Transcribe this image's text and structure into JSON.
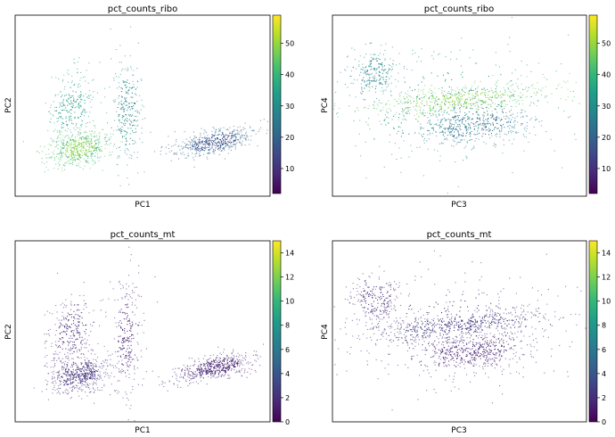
{
  "figure": {
    "colormap": [
      "#440154",
      "#482878",
      "#3e4989",
      "#31688e",
      "#26828e",
      "#1f9e89",
      "#35b779",
      "#6ece58",
      "#b5de2b",
      "#fde725"
    ]
  },
  "chart_data": [
    {
      "type": "scatter",
      "title": "pct_counts_ribo",
      "xlabel": "PC1",
      "ylabel": "PC2",
      "xticks": false,
      "yticks": false,
      "grid": false,
      "colorbar": {
        "vmin": 2,
        "vmax": 59,
        "ticks": [
          10,
          20,
          30,
          40,
          50
        ],
        "tick_labels": [
          "10",
          "20",
          "30",
          "40",
          "50"
        ],
        "position": "right",
        "colormap": "viridis"
      },
      "clusters": [
        {
          "x": -6.0,
          "y": -1.0,
          "sx": 1.0,
          "sy": 0.8,
          "r": 0.25,
          "n": 520,
          "value": 42,
          "jitter": 5,
          "core": 48
        },
        {
          "x": -6.5,
          "y": 2.5,
          "sx": 0.8,
          "sy": 1.5,
          "r": 0.2,
          "n": 260,
          "value": 34,
          "jitter": 6
        },
        {
          "x": -3.0,
          "y": 2.0,
          "sx": 0.5,
          "sy": 2.5,
          "r": 0.0,
          "n": 260,
          "value": 28,
          "jitter": 6
        },
        {
          "x": 2.5,
          "y": -0.5,
          "sx": 1.3,
          "sy": 0.6,
          "r": 0.55,
          "n": 520,
          "value": 20,
          "jitter": 4,
          "core": 16
        }
      ],
      "xrange": [
        -10,
        6
      ],
      "yrange": [
        -5,
        10
      ]
    },
    {
      "type": "scatter",
      "title": "pct_counts_ribo",
      "xlabel": "PC3",
      "ylabel": "PC4",
      "xticks": false,
      "yticks": false,
      "grid": false,
      "colorbar": {
        "vmin": 2,
        "vmax": 59,
        "ticks": [
          10,
          20,
          30,
          40,
          50
        ],
        "tick_labels": [
          "10",
          "20",
          "30",
          "40",
          "50"
        ],
        "position": "right",
        "colormap": "viridis"
      },
      "clusters": [
        {
          "x": -7.0,
          "y": 3.5,
          "sx": 0.9,
          "sy": 1.0,
          "r": 0.0,
          "n": 220,
          "value": 28,
          "jitter": 5
        },
        {
          "x": -1.0,
          "y": 1.5,
          "sx": 3.5,
          "sy": 0.7,
          "r": 0.55,
          "n": 560,
          "value": 44,
          "jitter": 5,
          "core": 48
        },
        {
          "x": 0.0,
          "y": -0.5,
          "sx": 2.2,
          "sy": 0.8,
          "r": 0.15,
          "n": 460,
          "value": 23,
          "jitter": 4
        },
        {
          "x": -1.5,
          "y": 1.0,
          "sx": 4.5,
          "sy": 2.5,
          "r": 0.1,
          "n": 320,
          "value": 30,
          "jitter": 6
        }
      ],
      "xrange": [
        -10,
        8
      ],
      "yrange": [
        -6,
        8
      ]
    },
    {
      "type": "scatter",
      "title": "pct_counts_mt",
      "xlabel": "PC1",
      "ylabel": "PC2",
      "xticks": false,
      "yticks": false,
      "grid": false,
      "colorbar": {
        "vmin": 0,
        "vmax": 15,
        "ticks": [
          0,
          2,
          4,
          6,
          8,
          10,
          12,
          14
        ],
        "tick_labels": [
          "0",
          "2",
          "4",
          "6",
          "8",
          "10",
          "12",
          "14"
        ],
        "position": "right",
        "colormap": "viridis"
      },
      "clusters": [
        {
          "x": -6.0,
          "y": -1.0,
          "sx": 1.0,
          "sy": 0.8,
          "r": 0.25,
          "n": 520,
          "value": 2.2,
          "jitter": 0.8
        },
        {
          "x": -6.5,
          "y": 2.5,
          "sx": 0.8,
          "sy": 1.5,
          "r": 0.2,
          "n": 260,
          "value": 1.8,
          "jitter": 0.8
        },
        {
          "x": -3.0,
          "y": 2.0,
          "sx": 0.5,
          "sy": 2.5,
          "r": 0.0,
          "n": 260,
          "value": 1.6,
          "jitter": 0.8
        },
        {
          "x": 2.5,
          "y": -0.5,
          "sx": 1.3,
          "sy": 0.6,
          "r": 0.55,
          "n": 520,
          "value": 1.5,
          "jitter": 0.7
        }
      ],
      "xrange": [
        -10,
        6
      ],
      "yrange": [
        -5,
        10
      ]
    },
    {
      "type": "scatter",
      "title": "pct_counts_mt",
      "xlabel": "PC3",
      "ylabel": "PC4",
      "xticks": false,
      "yticks": false,
      "grid": false,
      "colorbar": {
        "vmin": 0,
        "vmax": 15,
        "ticks": [
          0,
          2,
          4,
          6,
          8,
          10,
          12,
          14
        ],
        "tick_labels": [
          "0",
          "2",
          "4",
          "6",
          "8",
          "10",
          "12",
          "14"
        ],
        "position": "right",
        "colormap": "viridis"
      },
      "clusters": [
        {
          "x": -7.0,
          "y": 3.5,
          "sx": 0.9,
          "sy": 1.0,
          "r": 0.0,
          "n": 220,
          "value": 1.8,
          "jitter": 0.8
        },
        {
          "x": -1.0,
          "y": 1.5,
          "sx": 3.5,
          "sy": 0.7,
          "r": 0.55,
          "n": 560,
          "value": 2.6,
          "jitter": 0.8
        },
        {
          "x": 0.0,
          "y": -0.5,
          "sx": 2.2,
          "sy": 0.8,
          "r": 0.15,
          "n": 460,
          "value": 1.5,
          "jitter": 0.7
        },
        {
          "x": -1.5,
          "y": 1.0,
          "sx": 4.5,
          "sy": 2.5,
          "r": 0.1,
          "n": 320,
          "value": 1.7,
          "jitter": 0.8
        }
      ],
      "xrange": [
        -10,
        8
      ],
      "yrange": [
        -6,
        8
      ]
    }
  ]
}
